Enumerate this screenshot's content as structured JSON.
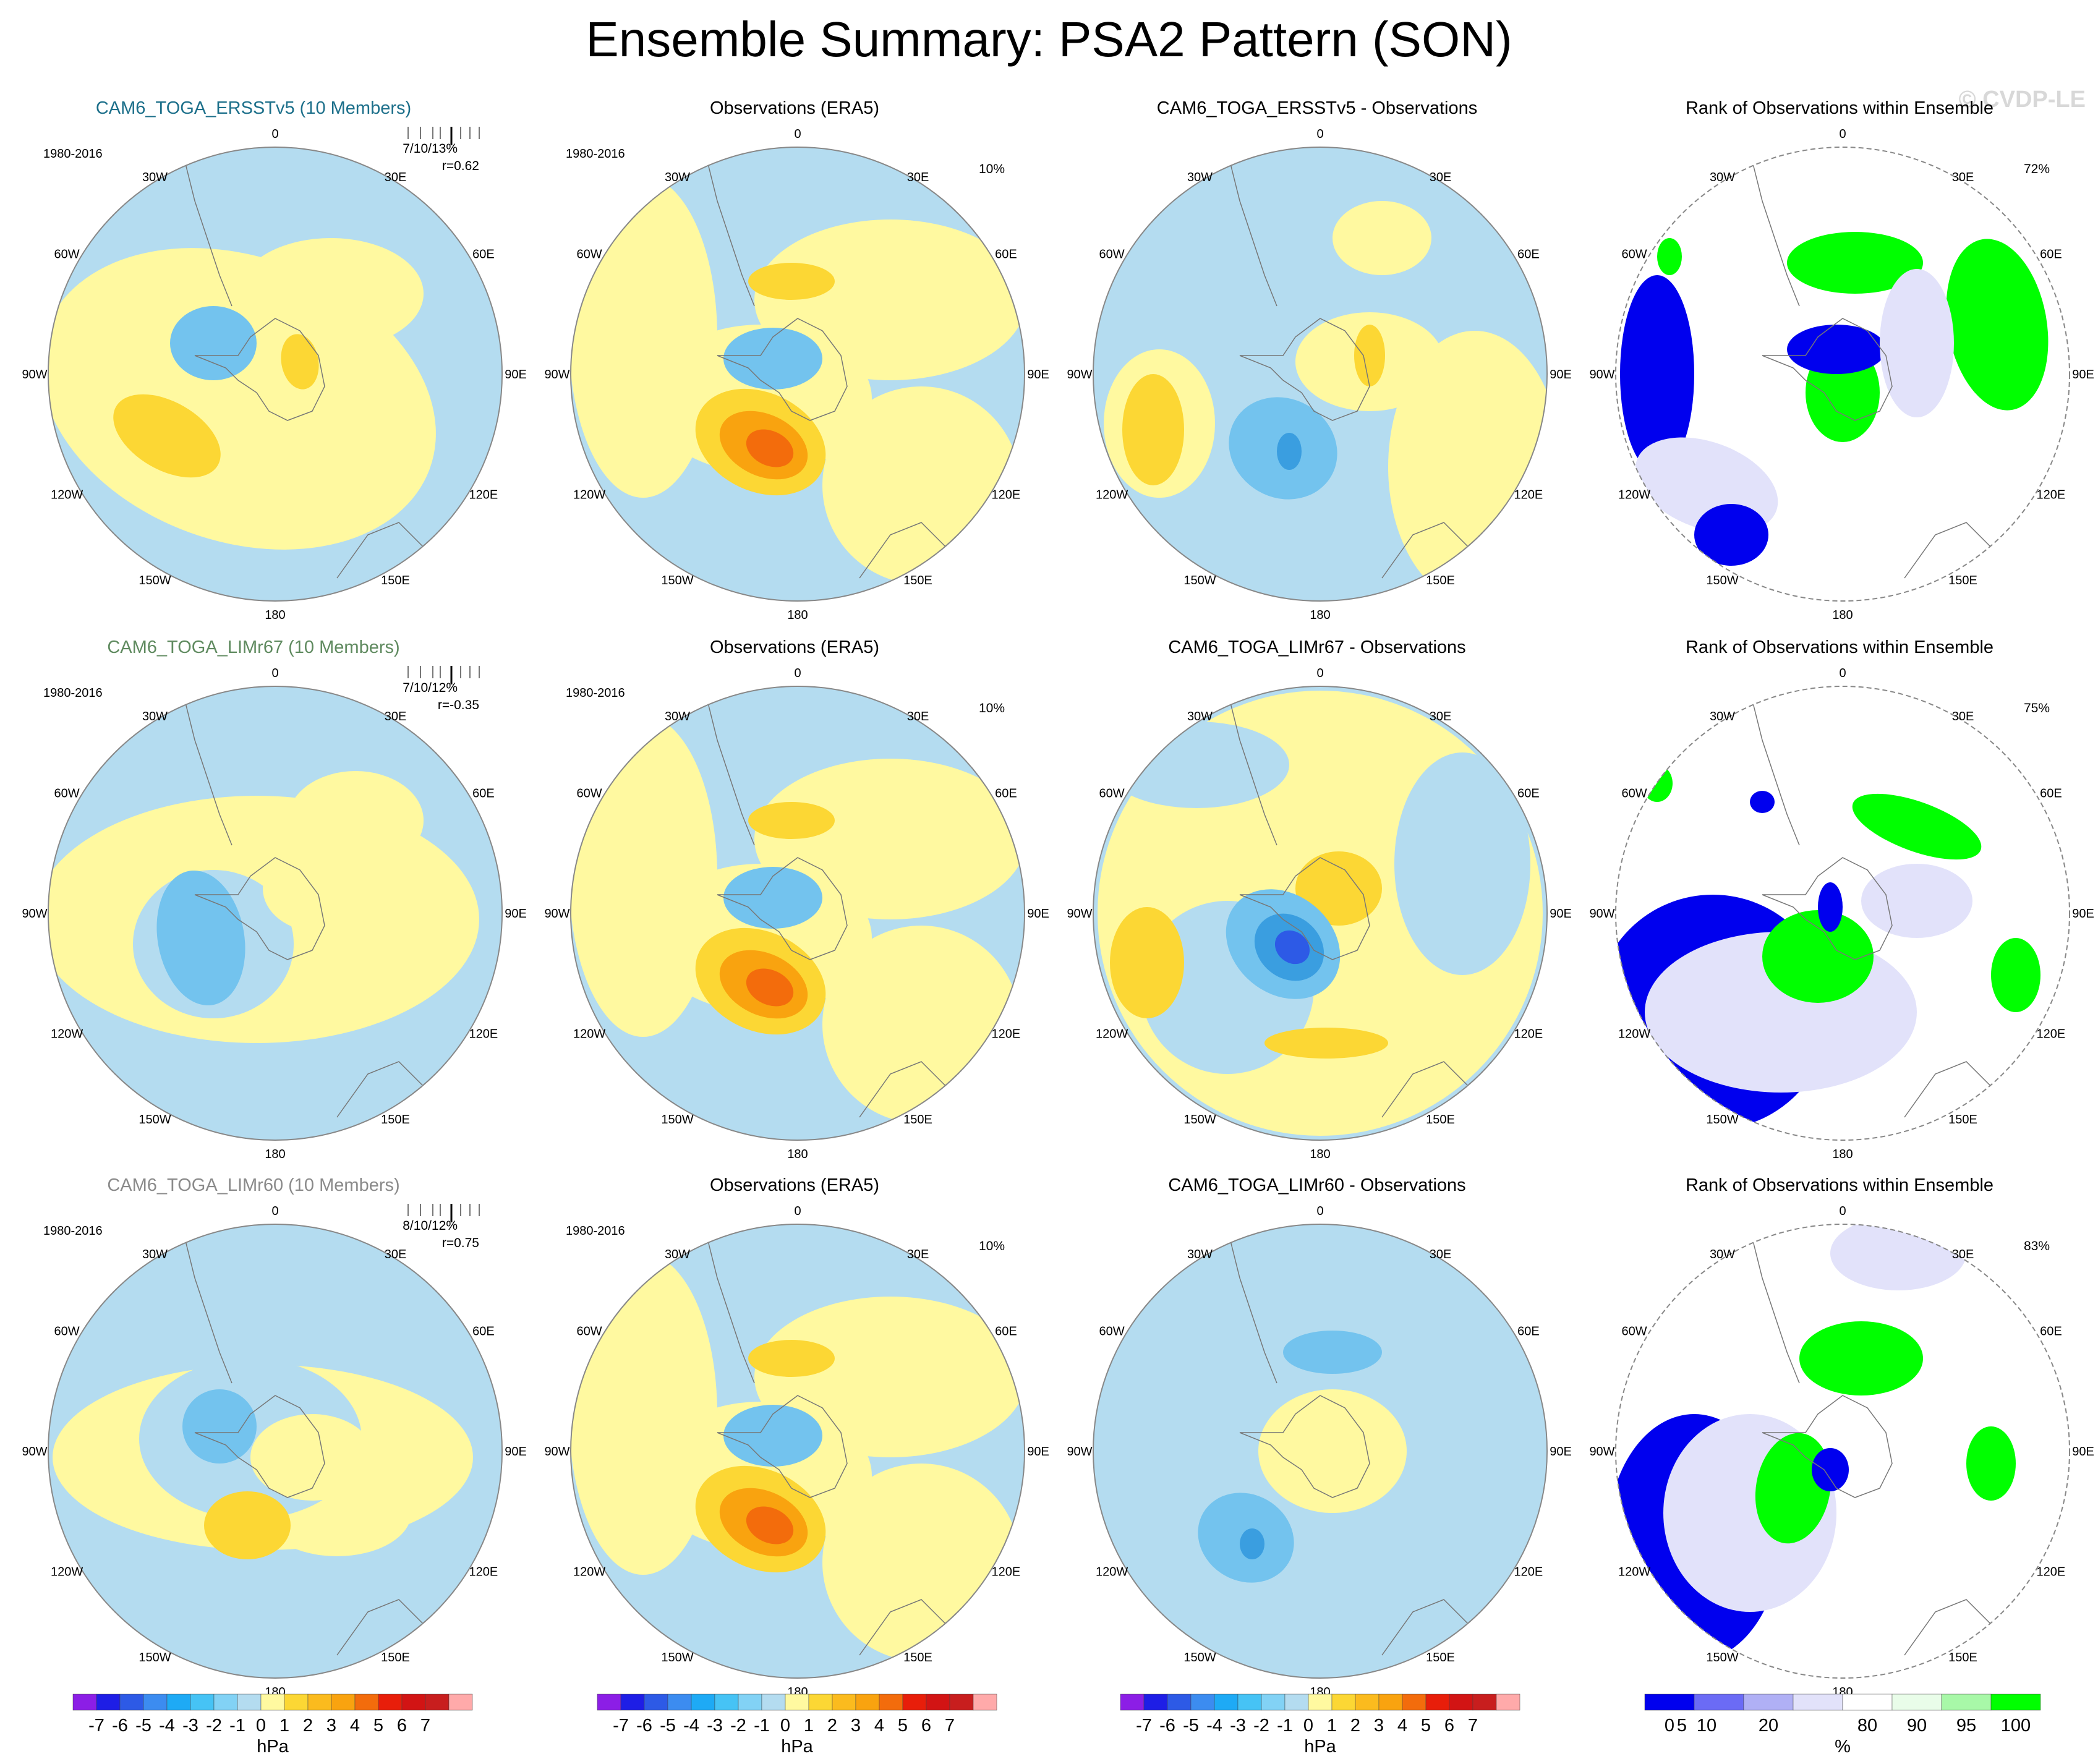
{
  "title": "Ensemble Summary: PSA2 Pattern (SON)",
  "watermark": "© CVDP-LE",
  "colors": {
    "blue_light": "#b4dcf0",
    "blue_mid": "#73c3ee",
    "blue_dark": "#3a9ee0",
    "yellow": "#fff9a0",
    "orange_light": "#fcd734",
    "orange": "#f9a30f",
    "orange_dark": "#f36c0c",
    "rank_blue": "#0000ee",
    "rank_lavender": "#e2e2fa",
    "rank_green": "#00ff00",
    "rank_palegreen": "#e9fde9"
  },
  "map_labels": {
    "lon": [
      "0",
      "30E",
      "60E",
      "90E",
      "120E",
      "150E",
      "180",
      "150W",
      "120W",
      "90W",
      "60W",
      "30W"
    ],
    "period": "1980-2016"
  },
  "rows": [
    {
      "model_title": "CAM6_TOGA_ERSSTv5 (10 Members)",
      "model_title_color": "#1c6f8a",
      "stat_line1": "7/10/13%",
      "stat_line2": "r=0.62",
      "obs_title": "Observations (ERA5)",
      "obs_pct": "10%",
      "diff_title": "CAM6_TOGA_ERSSTv5 - Observations",
      "rank_title": "Rank of Observations within Ensemble",
      "rank_pct": "72%"
    },
    {
      "model_title": "CAM6_TOGA_LIMr67 (10 Members)",
      "model_title_color": "#5f8a5f",
      "stat_line1": "7/10/12%",
      "stat_line2": "r=-0.35",
      "obs_title": "Observations (ERA5)",
      "obs_pct": "10%",
      "diff_title": "CAM6_TOGA_LIMr67 - Observations",
      "rank_title": "Rank of Observations within Ensemble",
      "rank_pct": "75%"
    },
    {
      "model_title": "CAM6_TOGA_LIMr60 (10 Members)",
      "model_title_color": "#8a8a8a",
      "stat_line1": "8/10/12%",
      "stat_line2": "r=0.75",
      "obs_title": "Observations (ERA5)",
      "obs_pct": "10%",
      "diff_title": "CAM6_TOGA_LIMr60 - Observations",
      "rank_title": "Rank of Observations within Ensemble",
      "rank_pct": "83%"
    }
  ],
  "colorbar_hpa": {
    "unit": "hPa",
    "labels": [
      "-7",
      "-6",
      "-5",
      "-4",
      "-3",
      "-2",
      "-1",
      "0",
      "1",
      "2",
      "3",
      "4",
      "5",
      "6",
      "7"
    ],
    "colors": [
      "#8c1ee6",
      "#1e1ee6",
      "#2d5ae6",
      "#3c8cf0",
      "#1eaaf5",
      "#46c3f5",
      "#82d2f5",
      "#b4dcf0",
      "#fff9a0",
      "#fcd734",
      "#fbbb1e",
      "#f9a30f",
      "#f36c0c",
      "#e81e0a",
      "#d21414",
      "#c81e1e",
      "#ffaaaa"
    ]
  },
  "colorbar_rank": {
    "unit": "%",
    "labels": [
      "0",
      "5",
      "10",
      "20",
      "80",
      "90",
      "95",
      "100"
    ],
    "colors": [
      "#0000ee",
      "#6b6bf5",
      "#b0b0f5",
      "#e2e2fa",
      "#ffffff",
      "#e9fde9",
      "#a8f8a8",
      "#00ff00"
    ]
  }
}
